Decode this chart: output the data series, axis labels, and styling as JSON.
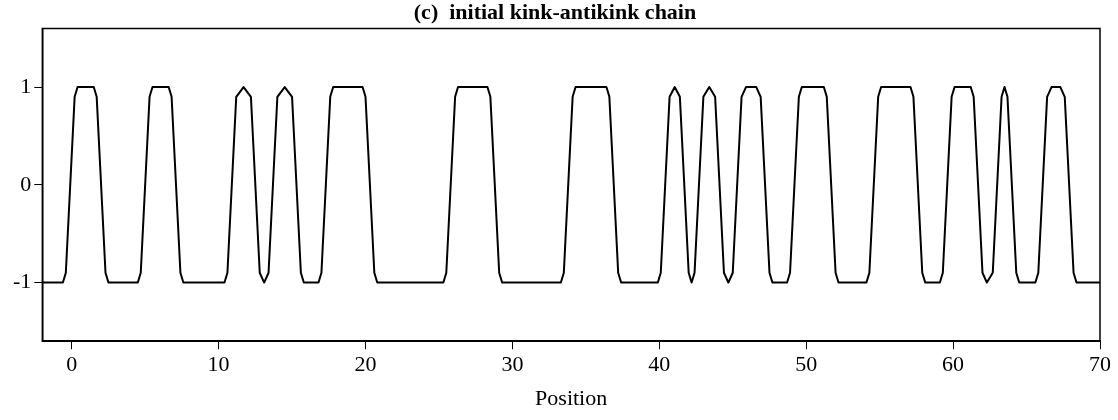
{
  "chart_data": {
    "type": "line",
    "title": "(c)  initial kink-antikink chain",
    "xlabel": "Position",
    "xlim": [
      -2,
      70
    ],
    "xticks": [
      0,
      10,
      20,
      30,
      40,
      50,
      60,
      70
    ],
    "ylim": [
      -1.6,
      1.6
    ],
    "yticks": [
      -1,
      0,
      1
    ],
    "grid": false,
    "legend": false,
    "marker": "none",
    "line_style": "solid",
    "series": [
      {
        "color": "#000000",
        "x": [
          -2,
          -0.6,
          -0.4,
          -0.1,
          0.2,
          0.4,
          1.5,
          1.7,
          2.0,
          2.3,
          2.5,
          4.5,
          4.7,
          5.0,
          5.3,
          5.5,
          6.6,
          6.8,
          7.1,
          7.4,
          7.6,
          10.4,
          10.6,
          10.9,
          11.2,
          11.7,
          12.2,
          12.5,
          12.8,
          13.1,
          13.4,
          13.7,
          14.0,
          14.5,
          15.0,
          15.3,
          15.6,
          15.8,
          16.8,
          17.0,
          17.3,
          17.6,
          17.8,
          19.8,
          20.0,
          20.3,
          20.6,
          20.8,
          25.3,
          25.5,
          25.8,
          26.1,
          26.3,
          28.3,
          28.5,
          28.8,
          29.1,
          29.3,
          33.3,
          33.5,
          33.8,
          34.1,
          34.3,
          36.4,
          36.6,
          36.9,
          37.2,
          37.4,
          39.9,
          40.1,
          40.4,
          40.7,
          41.05,
          41.4,
          41.7,
          42.0,
          42.2,
          42.4,
          42.7,
          43.0,
          43.4,
          43.8,
          44.1,
          44.4,
          44.7,
          45.0,
          45.3,
          45.6,
          45.9,
          46.6,
          46.9,
          47.2,
          47.5,
          47.7,
          48.7,
          48.9,
          49.2,
          49.5,
          49.7,
          51.2,
          51.4,
          51.7,
          52.0,
          52.2,
          54.1,
          54.3,
          54.6,
          54.9,
          55.1,
          57.1,
          57.3,
          57.6,
          57.9,
          58.1,
          59.1,
          59.3,
          59.6,
          59.9,
          60.1,
          61.2,
          61.4,
          61.7,
          62.0,
          62.3,
          62.7,
          63.0,
          63.3,
          63.5,
          63.7,
          64.0,
          64.3,
          64.5,
          65.6,
          65.8,
          66.1,
          66.4,
          66.7,
          67.3,
          67.6,
          67.9,
          68.2,
          68.4,
          70
        ],
        "values": [
          -1,
          -1,
          -0.9,
          0,
          0.9,
          1,
          1,
          0.9,
          0,
          -0.9,
          -1,
          -1,
          -0.9,
          0,
          0.9,
          1,
          1,
          0.9,
          0,
          -0.9,
          -1,
          -1,
          -0.9,
          0,
          0.9,
          1,
          0.9,
          0,
          -0.9,
          -1,
          -0.9,
          0,
          0.9,
          1,
          0.9,
          0,
          -0.9,
          -1,
          -1,
          -0.9,
          0,
          0.9,
          1,
          1,
          0.9,
          0,
          -0.9,
          -1,
          -1,
          -0.9,
          0,
          0.9,
          1,
          1,
          0.9,
          0,
          -0.9,
          -1,
          -1,
          -0.9,
          0,
          0.9,
          1,
          1,
          0.9,
          0,
          -0.9,
          -1,
          -1,
          -0.9,
          0,
          0.9,
          1,
          0.9,
          0,
          -0.9,
          -1,
          -0.9,
          0,
          0.9,
          1,
          0.9,
          0,
          -0.9,
          -1,
          -0.9,
          0,
          0.9,
          1,
          1,
          0.9,
          0,
          -0.9,
          -1,
          -1,
          -0.9,
          0,
          0.9,
          1,
          1,
          0.9,
          0,
          -0.9,
          -1,
          -1,
          -0.9,
          0,
          0.9,
          1,
          1,
          0.9,
          0,
          -0.9,
          -1,
          -1,
          -0.9,
          0,
          0.9,
          1,
          1,
          0.9,
          0,
          -0.9,
          -1,
          -0.9,
          0,
          0.9,
          1,
          0.9,
          0,
          -0.9,
          -1,
          -1,
          -0.9,
          0,
          0.9,
          1,
          1,
          0.9,
          0,
          -0.9,
          -1,
          -1
        ]
      }
    ]
  }
}
